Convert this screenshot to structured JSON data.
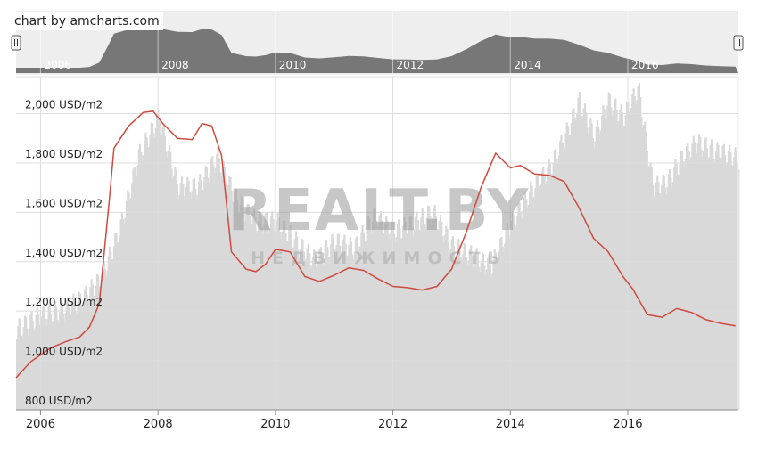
{
  "credit": "chart by amcharts.com",
  "watermark": {
    "brand": "REALT.BY",
    "tagline": "НЕДВИЖИМОСТЬ"
  },
  "colors": {
    "line": "#cf4a3f",
    "volume": "#d9d9d9",
    "scroll_fill": "#777777",
    "scroll_bg": "#eeeeee",
    "grid": "#dddddd"
  },
  "scrollbar": {
    "year_labels": [
      "2006",
      "2008",
      "2010",
      "2012",
      "2014",
      "2016"
    ],
    "left_handle": "grip-handle-left",
    "right_handle": "grip-handle-right"
  },
  "chart_data": {
    "type": "line",
    "title": "",
    "xlabel": "",
    "ylabel": "",
    "y_unit": "USD/m2",
    "xlim": [
      "2005-08",
      "2017-05"
    ],
    "ylim": [
      800,
      2150
    ],
    "y_ticks": [
      "800 USD/m2",
      "1,000 USD/m2",
      "1,200 USD/m2",
      "1,400 USD/m2",
      "1,600 USD/m2",
      "1,800 USD/m2",
      "2,000 USD/m2"
    ],
    "x_ticks": [
      "2006",
      "2008",
      "2010",
      "2012",
      "2014",
      "2016"
    ],
    "grid": true,
    "series": [
      {
        "name": "",
        "values": [
          [
            "2005-08",
            930
          ],
          [
            "2005-11",
            995
          ],
          [
            "2006-03",
            1050
          ],
          [
            "2006-06",
            1075
          ],
          [
            "2006-09",
            1095
          ],
          [
            "2006-11",
            1135
          ],
          [
            "2007-01",
            1230
          ],
          [
            "2007-03",
            1640
          ],
          [
            "2007-04",
            1860
          ],
          [
            "2007-07",
            1950
          ],
          [
            "2007-10",
            2005
          ],
          [
            "2007-12",
            2010
          ],
          [
            "2008-02",
            1960
          ],
          [
            "2008-05",
            1900
          ],
          [
            "2008-08",
            1895
          ],
          [
            "2008-10",
            1960
          ],
          [
            "2008-12",
            1950
          ],
          [
            "2009-02",
            1830
          ],
          [
            "2009-04",
            1440
          ],
          [
            "2009-07",
            1370
          ],
          [
            "2009-09",
            1360
          ],
          [
            "2009-11",
            1390
          ],
          [
            "2010-01",
            1450
          ],
          [
            "2010-04",
            1440
          ],
          [
            "2010-07",
            1340
          ],
          [
            "2010-10",
            1320
          ],
          [
            "2011-01",
            1345
          ],
          [
            "2011-04",
            1375
          ],
          [
            "2011-07",
            1365
          ],
          [
            "2011-10",
            1330
          ],
          [
            "2012-01",
            1300
          ],
          [
            "2012-04",
            1295
          ],
          [
            "2012-07",
            1285
          ],
          [
            "2012-10",
            1300
          ],
          [
            "2013-01",
            1370
          ],
          [
            "2013-04",
            1520
          ],
          [
            "2013-07",
            1700
          ],
          [
            "2013-10",
            1840
          ],
          [
            "2014-01",
            1780
          ],
          [
            "2014-03",
            1790
          ],
          [
            "2014-06",
            1755
          ],
          [
            "2014-09",
            1750
          ],
          [
            "2014-12",
            1725
          ],
          [
            "2015-03",
            1620
          ],
          [
            "2015-06",
            1495
          ],
          [
            "2015-09",
            1440
          ],
          [
            "2015-12",
            1340
          ],
          [
            "2016-02",
            1290
          ],
          [
            "2016-05",
            1185
          ],
          [
            "2016-08",
            1175
          ],
          [
            "2016-11",
            1210
          ],
          [
            "2017-02",
            1195
          ],
          [
            "2017-05",
            1165
          ],
          [
            "2017-08",
            1150
          ],
          [
            "2017-11",
            1140
          ]
        ]
      }
    ],
    "volume_series": {
      "name": "",
      "values": [
        [
          "2005-08",
          1120
        ],
        [
          "2006-01",
          1180
        ],
        [
          "2006-05",
          1200
        ],
        [
          "2006-09",
          1240
        ],
        [
          "2007-01",
          1320
        ],
        [
          "2007-05",
          1520
        ],
        [
          "2007-09",
          1830
        ],
        [
          "2008-01",
          1980
        ],
        [
          "2008-05",
          1700
        ],
        [
          "2008-09",
          1700
        ],
        [
          "2009-01",
          1820
        ],
        [
          "2009-05",
          1640
        ],
        [
          "2009-09",
          1560
        ],
        [
          "2010-01",
          1560
        ],
        [
          "2010-05",
          1480
        ],
        [
          "2010-09",
          1400
        ],
        [
          "2011-01",
          1480
        ],
        [
          "2011-05",
          1450
        ],
        [
          "2011-09",
          1580
        ],
        [
          "2012-01",
          1520
        ],
        [
          "2012-05",
          1550
        ],
        [
          "2012-09",
          1600
        ],
        [
          "2013-01",
          1460
        ],
        [
          "2013-05",
          1420
        ],
        [
          "2013-09",
          1380
        ],
        [
          "2014-01",
          1550
        ],
        [
          "2014-05",
          1680
        ],
        [
          "2014-09",
          1780
        ],
        [
          "2014-12",
          1900
        ],
        [
          "2015-03",
          2050
        ],
        [
          "2015-06",
          1900
        ],
        [
          "2015-09",
          2050
        ],
        [
          "2015-12",
          1980
        ],
        [
          "2016-03",
          2100
        ],
        [
          "2016-06",
          1700
        ],
        [
          "2016-09",
          1720
        ],
        [
          "2016-12",
          1820
        ],
        [
          "2017-03",
          1880
        ],
        [
          "2017-06",
          1850
        ],
        [
          "2017-11",
          1820
        ]
      ]
    }
  }
}
